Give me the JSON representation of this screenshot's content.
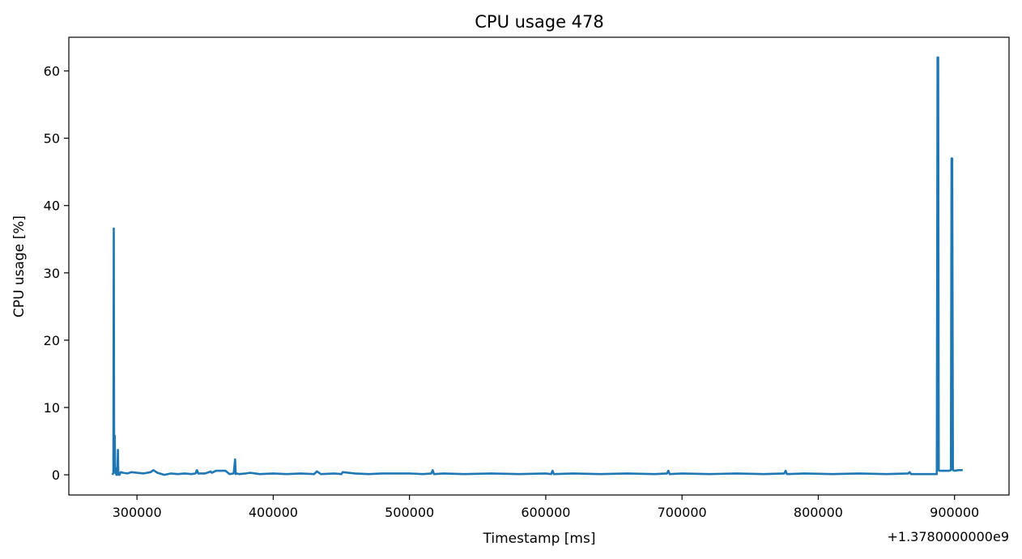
{
  "chart_data": {
    "type": "line",
    "title": "CPU usage 478",
    "xlabel": "Timestamp [ms]",
    "ylabel": "CPU usage [%]",
    "x_offset_label": "+1.3780000000e9",
    "xlim": [
      250000,
      940000
    ],
    "ylim": [
      -3,
      65
    ],
    "xticks": [
      300000,
      400000,
      500000,
      600000,
      700000,
      800000,
      900000
    ],
    "xtick_labels": [
      "300000",
      "400000",
      "500000",
      "600000",
      "700000",
      "800000",
      "900000"
    ],
    "yticks": [
      0,
      10,
      20,
      30,
      40,
      50,
      60
    ],
    "ytick_labels": [
      "0",
      "10",
      "20",
      "30",
      "40",
      "50",
      "60"
    ],
    "grid": false,
    "line_color": "#1f77b4",
    "series": [
      {
        "x": [
          282000,
          282700,
          283000,
          283300,
          283700,
          284000,
          284400,
          284800,
          285200,
          285600,
          286000,
          286300,
          286700,
          287200,
          288000,
          290000,
          293000,
          296000,
          300000,
          305000,
          310000,
          312000,
          315000,
          320000,
          325000,
          330000,
          335000,
          340000,
          343000,
          344000,
          345000,
          350000,
          353000,
          354000,
          355000,
          358000,
          360000,
          365000,
          368000,
          371000,
          372000,
          372500,
          373000,
          375000,
          380000,
          383000,
          390000,
          400000,
          410000,
          420000,
          430000,
          432000,
          435000,
          445000,
          450000,
          451000,
          460000,
          470000,
          480000,
          490000,
          500000,
          510000,
          516000,
          517000,
          518000,
          525000,
          540000,
          560000,
          580000,
          600000,
          604000,
          605000,
          606000,
          620000,
          640000,
          660000,
          680000,
          689000,
          690000,
          691000,
          700000,
          720000,
          740000,
          760000,
          775000,
          776000,
          777000,
          790000,
          810000,
          830000,
          850000,
          866000,
          867000,
          868000,
          880000,
          887000,
          887500,
          888000,
          888400,
          888800,
          890000,
          893000,
          896000,
          897300,
          897800,
          898300,
          898800,
          900000,
          903000,
          906000
        ],
        "y": [
          0,
          0.3,
          36.6,
          0.4,
          5.8,
          0.3,
          1.0,
          0,
          0.2,
          0,
          3.7,
          0.2,
          0,
          0,
          0.4,
          0.3,
          0.2,
          0.4,
          0.3,
          0.2,
          0.4,
          0.7,
          0.3,
          0,
          0.2,
          0.1,
          0.2,
          0.1,
          0.2,
          0.7,
          0.2,
          0.2,
          0.4,
          0.5,
          0.3,
          0.6,
          0.6,
          0.6,
          0.1,
          0.2,
          2.3,
          0.1,
          0.2,
          0.1,
          0.2,
          0.3,
          0.1,
          0.2,
          0.1,
          0.2,
          0.1,
          0.5,
          0.1,
          0.2,
          0.1,
          0.4,
          0.2,
          0.1,
          0.2,
          0.2,
          0.2,
          0.1,
          0.2,
          0.7,
          0.1,
          0.2,
          0.1,
          0.2,
          0.1,
          0.2,
          0.1,
          0.6,
          0.1,
          0.2,
          0.1,
          0.2,
          0.1,
          0.2,
          0.6,
          0.1,
          0.2,
          0.1,
          0.2,
          0.1,
          0.2,
          0.6,
          0.1,
          0.2,
          0.1,
          0.2,
          0.1,
          0.2,
          0.4,
          0.1,
          0.1,
          0.1,
          62,
          62,
          0.7,
          0.6,
          0.6,
          0.6,
          0.6,
          0.7,
          47,
          47,
          0.7,
          0.6,
          0.7,
          0.7
        ]
      }
    ]
  }
}
